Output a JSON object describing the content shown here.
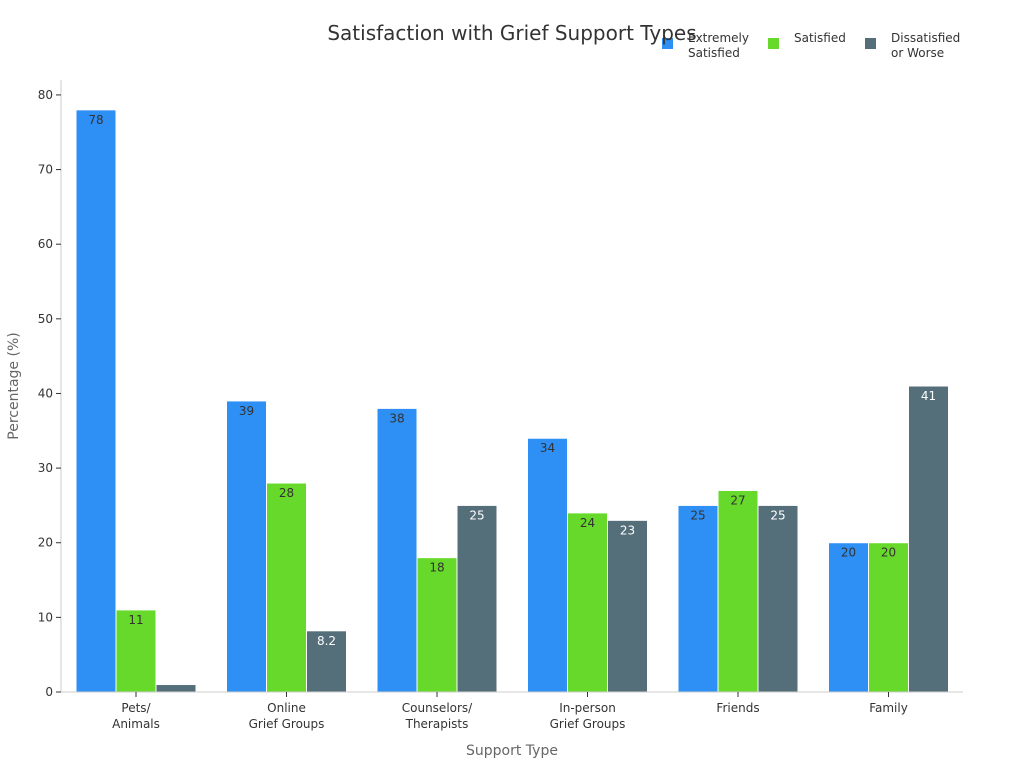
{
  "chart_data": {
    "type": "bar",
    "title": "Satisfaction with Grief Support Types",
    "xlabel": "Support Type",
    "ylabel": "Percentage (%)",
    "ylim": [
      0,
      82
    ],
    "yticks": [
      0,
      10,
      20,
      30,
      40,
      50,
      60,
      70,
      80
    ],
    "grid": false,
    "legend_position": "top-right",
    "categories": [
      [
        "Pets/",
        "Animals"
      ],
      [
        "Online",
        "Grief Groups"
      ],
      [
        "Counselors/",
        "Therapists"
      ],
      [
        "In-person",
        "Grief Groups"
      ],
      [
        "Friends"
      ],
      [
        "Family"
      ]
    ],
    "series": [
      {
        "name": [
          "Extremely",
          "Satisfied"
        ],
        "color": "#2e8ff5",
        "label_color": "#333333",
        "values": [
          78,
          39,
          38,
          34,
          25,
          20
        ],
        "labels": [
          "78",
          "39",
          "38",
          "34",
          "25",
          "20"
        ]
      },
      {
        "name": [
          "Satisfied"
        ],
        "color": "#66d92a",
        "label_color": "#333333",
        "values": [
          11,
          28,
          18,
          24,
          27,
          20
        ],
        "labels": [
          "11",
          "28",
          "18",
          "24",
          "27",
          "20"
        ]
      },
      {
        "name": [
          "Dissatisfied",
          "or Worse"
        ],
        "color": "#546e7a",
        "label_color": "#ffffff",
        "values": [
          1,
          8.2,
          25,
          23,
          25,
          41
        ],
        "labels": [
          "",
          "8.2",
          "25",
          "23",
          "25",
          "41"
        ]
      }
    ]
  }
}
